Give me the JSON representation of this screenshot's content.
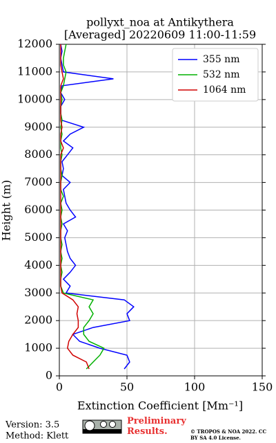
{
  "chart_data": {
    "type": "line",
    "title": "pollyxt_noa at Antikythera",
    "subtitle": "[Averaged] 20220609 11:00-11:59",
    "x_label": "Extinction Coefficient [Mm⁻¹]",
    "y_label": "Height (m)",
    "heights": [
      250,
      500,
      750,
      1000,
      1250,
      1500,
      1750,
      2000,
      2250,
      2500,
      2750,
      3000,
      3250,
      3500,
      3750,
      4000,
      4250,
      4500,
      4750,
      5000,
      5250,
      5500,
      5750,
      6000,
      6250,
      6500,
      6750,
      7000,
      7250,
      7500,
      7750,
      8000,
      8250,
      8500,
      8750,
      9000,
      9250,
      9500,
      9750,
      10000,
      10250,
      10500,
      10750,
      11000,
      11250,
      11500,
      11750,
      12000
    ],
    "series": [
      {
        "name": "355 nm",
        "color": "#0000ff",
        "values": [
          48,
          52,
          50,
          30,
          15,
          10,
          25,
          52,
          50,
          55,
          48,
          5,
          8,
          3,
          8,
          12,
          8,
          6,
          5,
          4,
          6,
          3,
          12,
          8,
          5,
          4,
          3,
          8,
          2,
          3,
          2,
          6,
          10,
          3,
          8,
          18,
          2,
          1,
          1,
          4,
          1,
          2,
          40,
          3,
          2,
          1,
          2,
          1
        ]
      },
      {
        "name": "532 nm",
        "color": "#00b000",
        "values": [
          20,
          25,
          30,
          33,
          22,
          18,
          18,
          22,
          25,
          22,
          25,
          3,
          1,
          1,
          2,
          1,
          2,
          1,
          2,
          1,
          1,
          2,
          1,
          2,
          1,
          3,
          1,
          1,
          2,
          1,
          1,
          2,
          1,
          1,
          2,
          1,
          2,
          1,
          1,
          2,
          1,
          3,
          4,
          5,
          3,
          3,
          4,
          5
        ]
      },
      {
        "name": "1064 nm",
        "color": "#d00000",
        "values": [
          22,
          20,
          10,
          6,
          7,
          10,
          14,
          14,
          13,
          14,
          10,
          2,
          1,
          1,
          1,
          1,
          1,
          1,
          1,
          1,
          1,
          1,
          1,
          1,
          1,
          1,
          1,
          1,
          1,
          1,
          1,
          1,
          3,
          1,
          1,
          2,
          1,
          1,
          1,
          1,
          1,
          1,
          3,
          2,
          1,
          1,
          1,
          1
        ]
      }
    ],
    "xlim": [
      0,
      150
    ],
    "xticks": [
      0,
      50,
      100,
      150
    ],
    "ylim": [
      0,
      12000
    ],
    "yticks": [
      0,
      1000,
      2000,
      3000,
      4000,
      5000,
      6000,
      7000,
      8000,
      9000,
      10000,
      11000,
      12000
    ],
    "grid": true,
    "legend": "upper right",
    "footer": {
      "version": "Version: 3.5",
      "method": "Method: Klett",
      "preliminary": "Preliminary Results.",
      "copyright": "© TROPOS & NOA 2022. CC BY SA 4.0 License."
    }
  }
}
